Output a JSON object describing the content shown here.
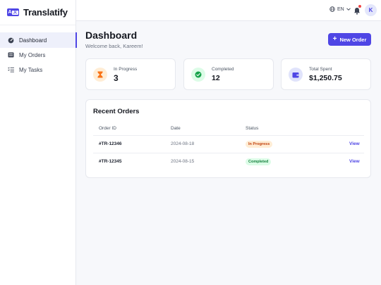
{
  "app": {
    "name": "Translatify",
    "logo_left": "A",
    "logo_right": "文"
  },
  "sidebar": {
    "items": [
      {
        "label": "Dashboard",
        "icon": "dashboard-icon",
        "active": true
      },
      {
        "label": "My Orders",
        "icon": "orders-icon"
      },
      {
        "label": "My Tasks",
        "icon": "tasks-icon"
      }
    ]
  },
  "topbar": {
    "language": "EN",
    "avatar_initial": "K",
    "notification_dot_color": "#ef4444"
  },
  "header": {
    "title": "Dashboard",
    "subtitle": "Welcome back, Kareem!",
    "new_order_label": "New Order"
  },
  "stats": [
    {
      "label": "In Progress",
      "value": "3",
      "icon": "hourglass-icon",
      "color": "#f97316",
      "bg": "#ffedd5"
    },
    {
      "label": "Completed",
      "value": "12",
      "icon": "check-circle-icon",
      "color": "#16a34a",
      "bg": "#dcfce7"
    },
    {
      "label": "Total Spent",
      "value": "$1,250.75",
      "icon": "wallet-icon",
      "color": "#4f46e5",
      "bg": "#e0e3fb"
    }
  ],
  "orders": {
    "title": "Recent Orders",
    "columns": [
      "Order ID",
      "Date",
      "Status"
    ],
    "rows": [
      {
        "id": "#TR-12346",
        "date": "2024-08-18",
        "status": "In Progress",
        "action": "View"
      },
      {
        "id": "#TR-12345",
        "date": "2024-08-15",
        "status": "Completed",
        "action": "View"
      }
    ]
  },
  "colors": {
    "accent": "#4f46e5",
    "in_progress": "#c2410c",
    "completed": "#15803d"
  }
}
